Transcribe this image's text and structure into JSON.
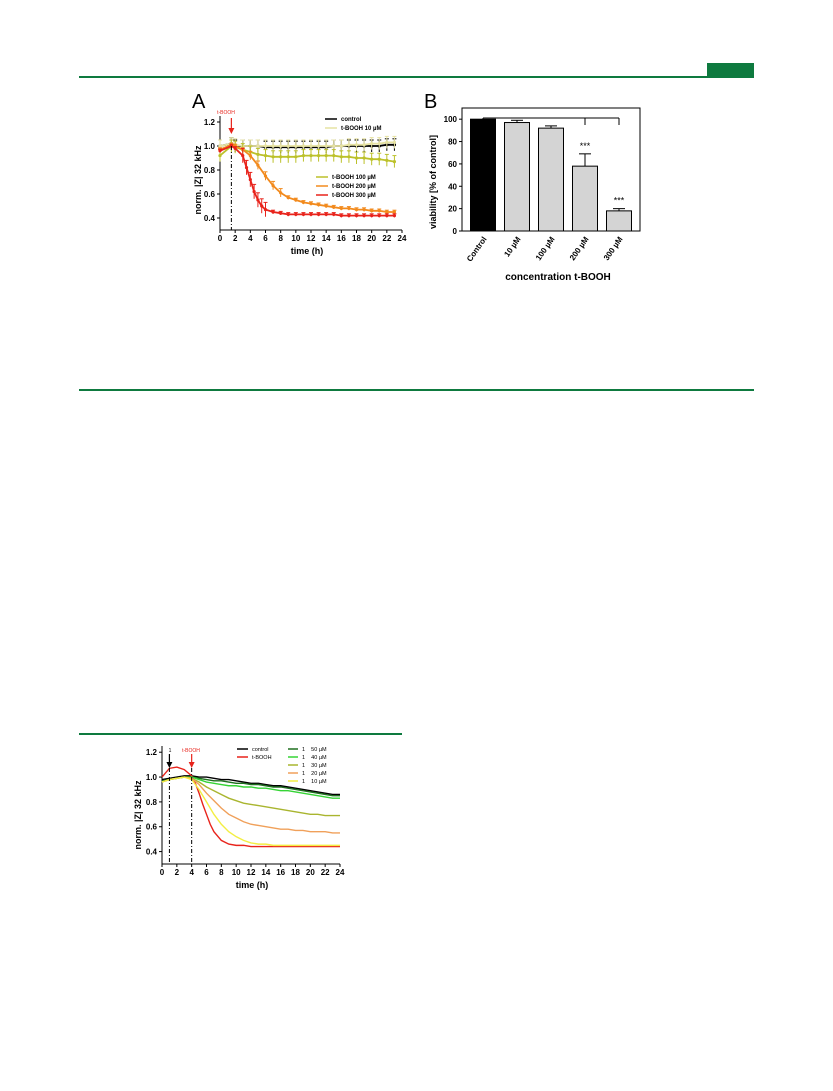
{
  "colors": {
    "rule": "#0e7a3f",
    "accent_block": "#0e7a3f",
    "control": "#000000",
    "tbooh_10": "#e6e2a2",
    "tbooh_100": "#bcc12a",
    "tbooh_200": "#f28a1d",
    "tbooh_300": "#e8231b",
    "arrow_red": "#e8231b",
    "bar_control": "#000000",
    "bar_treated": "#d4d4d4",
    "series_50": "#1f6f1f",
    "series_40": "#36d436",
    "series_30": "#a9b52f",
    "series_20": "#f0a05a",
    "series_10": "#f3ee43"
  },
  "figure_a": {
    "panel_label": "A",
    "arrow_label": "t-BOOH",
    "legend": {
      "control": "control",
      "t10": "t-BOOH 10 µM",
      "t100": "t-BOOH 100 µM",
      "t200": "t-BOOH 200 µM",
      "t300": "t-BOOH 300 µM"
    }
  },
  "figure_b": {
    "panel_label": "B",
    "significance": [
      "***",
      "***"
    ]
  },
  "figure_c": {
    "arrow1_label": "1",
    "arrow2_label": "t-BOOH",
    "legend": {
      "control": "control",
      "tbooh": "t-BOOH",
      "s50": "1    50 µM",
      "s40": "1    40 µM",
      "s30": "1    30 µM",
      "s20": "1    20 µM",
      "s10": "1    10 µM"
    }
  },
  "chart_data": [
    {
      "type": "line",
      "xlabel": "time (h)",
      "ylabel": "norm. |Z| 32 kHz",
      "xlim": [
        0,
        24
      ],
      "ylim": [
        0.3,
        1.25
      ],
      "xticks": [
        0,
        2,
        4,
        6,
        8,
        10,
        12,
        14,
        16,
        18,
        20,
        22,
        24
      ],
      "yticks": [
        0.4,
        0.6,
        0.8,
        1.0,
        1.2
      ],
      "event_time": 1.5,
      "legend_position": "top-right",
      "error_bars": true,
      "series": [
        {
          "name": "control",
          "x": [
            0,
            1.5,
            2,
            3,
            4,
            5,
            6,
            7,
            8,
            9,
            10,
            11,
            12,
            13,
            14,
            15,
            16,
            17,
            18,
            19,
            20,
            21,
            22,
            23
          ],
          "values": [
            1.0,
            1.02,
            1.0,
            1.0,
            1.0,
            1.0,
            0.99,
            0.99,
            0.99,
            0.99,
            0.99,
            0.99,
            0.99,
            0.99,
            0.99,
            1.0,
            1.0,
            1.0,
            1.0,
            1.0,
            1.0,
            1.0,
            1.01,
            1.01
          ]
        },
        {
          "name": "t-BOOH 10 µM",
          "x": [
            0,
            1.5,
            2,
            3,
            4,
            5,
            6,
            7,
            8,
            9,
            10,
            11,
            12,
            13,
            14,
            15,
            16,
            17,
            18,
            19,
            20,
            21,
            22,
            23
          ],
          "values": [
            1.0,
            1.02,
            1.01,
            1.0,
            1.0,
            1.0,
            1.0,
            1.0,
            1.0,
            1.0,
            1.0,
            1.0,
            1.0,
            1.0,
            1.0,
            1.0,
            1.0,
            1.01,
            1.01,
            1.01,
            1.02,
            1.02,
            1.03,
            1.03
          ]
        },
        {
          "name": "t-BOOH 100 µM",
          "x": [
            0,
            1.5,
            2,
            3,
            4,
            5,
            6,
            7,
            8,
            9,
            10,
            11,
            12,
            13,
            14,
            15,
            16,
            17,
            18,
            19,
            20,
            21,
            22,
            23
          ],
          "values": [
            0.92,
            1.0,
            0.99,
            0.97,
            0.95,
            0.93,
            0.92,
            0.91,
            0.91,
            0.91,
            0.91,
            0.92,
            0.92,
            0.92,
            0.92,
            0.92,
            0.91,
            0.91,
            0.9,
            0.9,
            0.89,
            0.89,
            0.88,
            0.87
          ]
        },
        {
          "name": "t-BOOH 200 µM",
          "x": [
            0,
            1.5,
            2,
            3,
            4,
            5,
            6,
            7,
            8,
            9,
            10,
            11,
            12,
            13,
            14,
            15,
            16,
            17,
            18,
            19,
            20,
            21,
            22,
            23
          ],
          "values": [
            0.97,
            1.01,
            1.0,
            0.97,
            0.92,
            0.84,
            0.75,
            0.67,
            0.61,
            0.57,
            0.55,
            0.53,
            0.52,
            0.51,
            0.5,
            0.49,
            0.48,
            0.48,
            0.47,
            0.47,
            0.46,
            0.46,
            0.45,
            0.45
          ]
        },
        {
          "name": "t-BOOH 300 µM",
          "x": [
            0,
            1.5,
            2,
            3,
            3.5,
            4,
            4.5,
            5,
            5.5,
            6,
            7,
            8,
            9,
            10,
            11,
            12,
            13,
            14,
            15,
            16,
            17,
            18,
            19,
            20,
            21,
            22,
            23
          ],
          "values": [
            0.96,
            1.0,
            0.98,
            0.92,
            0.82,
            0.72,
            0.62,
            0.55,
            0.5,
            0.47,
            0.45,
            0.44,
            0.43,
            0.43,
            0.43,
            0.43,
            0.43,
            0.43,
            0.43,
            0.42,
            0.42,
            0.42,
            0.42,
            0.42,
            0.42,
            0.42,
            0.42
          ]
        }
      ]
    },
    {
      "type": "bar",
      "categories": [
        "Control",
        "10 µM",
        "100 µM",
        "200 µM",
        "300 µM"
      ],
      "values": [
        100,
        97,
        92,
        58,
        18
      ],
      "errors": [
        0,
        2,
        2,
        11,
        2
      ],
      "xlabel": "concentration t-BOOH",
      "ylabel": "viability [% of control]",
      "ylim": [
        0,
        110
      ],
      "yticks": [
        0,
        20,
        40,
        60,
        80,
        100
      ],
      "annotations": [
        "***",
        "***"
      ]
    },
    {
      "type": "line",
      "xlabel": "time (h)",
      "ylabel": "norm. |Z| 32 kHz",
      "xlim": [
        0,
        24
      ],
      "ylim": [
        0.3,
        1.25
      ],
      "xticks": [
        0,
        2,
        4,
        6,
        8,
        10,
        12,
        14,
        16,
        18,
        20,
        22,
        24
      ],
      "yticks": [
        0.4,
        0.6,
        0.8,
        1.0,
        1.2
      ],
      "events": [
        1,
        4
      ],
      "legend_position": "top",
      "series": [
        {
          "name": "control",
          "x": [
            0,
            1,
            2,
            3,
            4,
            5,
            6,
            7,
            8,
            9,
            10,
            11,
            12,
            13,
            14,
            15,
            16,
            17,
            18,
            19,
            20,
            21,
            22,
            23,
            24
          ],
          "values": [
            0.98,
            0.99,
            1.0,
            1.01,
            1.01,
            1.0,
            1.0,
            0.99,
            0.98,
            0.98,
            0.97,
            0.96,
            0.95,
            0.95,
            0.94,
            0.93,
            0.93,
            0.92,
            0.91,
            0.9,
            0.89,
            0.88,
            0.87,
            0.86,
            0.86
          ]
        },
        {
          "name": "t-BOOH",
          "x": [
            0,
            1,
            2,
            3,
            4,
            4.5,
            5,
            5.5,
            6,
            6.5,
            7,
            8,
            9,
            10,
            11,
            12,
            14,
            16,
            18,
            20,
            22,
            24
          ],
          "values": [
            1.0,
            1.07,
            1.08,
            1.06,
            1.01,
            0.95,
            0.87,
            0.78,
            0.7,
            0.62,
            0.56,
            0.49,
            0.46,
            0.45,
            0.45,
            0.44,
            0.44,
            0.44,
            0.44,
            0.44,
            0.44,
            0.44
          ]
        },
        {
          "name": "1    50 µM",
          "x": [
            0,
            1,
            2,
            3,
            4,
            5,
            6,
            7,
            8,
            9,
            10,
            11,
            12,
            13,
            14,
            15,
            16,
            17,
            18,
            19,
            20,
            21,
            22,
            23,
            24
          ],
          "values": [
            0.97,
            0.98,
            0.99,
            1.0,
            1.0,
            0.99,
            0.98,
            0.97,
            0.97,
            0.96,
            0.95,
            0.95,
            0.94,
            0.94,
            0.93,
            0.92,
            0.92,
            0.91,
            0.9,
            0.89,
            0.88,
            0.87,
            0.86,
            0.85,
            0.85
          ]
        },
        {
          "name": "1    40 µM",
          "x": [
            0,
            1,
            2,
            3,
            4,
            5,
            6,
            7,
            8,
            9,
            10,
            11,
            12,
            13,
            14,
            15,
            16,
            17,
            18,
            19,
            20,
            21,
            22,
            23,
            24
          ],
          "values": [
            0.96,
            0.98,
            0.99,
            1.0,
            1.0,
            0.98,
            0.96,
            0.95,
            0.94,
            0.93,
            0.93,
            0.92,
            0.92,
            0.91,
            0.91,
            0.9,
            0.89,
            0.89,
            0.88,
            0.87,
            0.86,
            0.85,
            0.84,
            0.83,
            0.83
          ]
        },
        {
          "name": "1    30 µM",
          "x": [
            0,
            1,
            2,
            3,
            4,
            5,
            6,
            7,
            8,
            9,
            10,
            11,
            12,
            13,
            14,
            15,
            16,
            17,
            18,
            19,
            20,
            21,
            22,
            23,
            24
          ],
          "values": [
            0.96,
            0.98,
            0.99,
            1.0,
            0.99,
            0.96,
            0.92,
            0.89,
            0.86,
            0.83,
            0.81,
            0.79,
            0.78,
            0.77,
            0.76,
            0.75,
            0.74,
            0.73,
            0.72,
            0.71,
            0.7,
            0.7,
            0.69,
            0.69,
            0.69
          ]
        },
        {
          "name": "1    20 µM",
          "x": [
            0,
            1,
            2,
            3,
            4,
            5,
            6,
            7,
            8,
            9,
            10,
            11,
            12,
            13,
            14,
            15,
            16,
            17,
            18,
            19,
            20,
            21,
            22,
            23,
            24
          ],
          "values": [
            0.96,
            0.98,
            0.99,
            1.0,
            0.99,
            0.94,
            0.87,
            0.81,
            0.75,
            0.7,
            0.67,
            0.64,
            0.62,
            0.61,
            0.6,
            0.59,
            0.58,
            0.58,
            0.57,
            0.57,
            0.56,
            0.56,
            0.56,
            0.55,
            0.55
          ]
        },
        {
          "name": "1    10 µM",
          "x": [
            0,
            1,
            2,
            3,
            4,
            5,
            6,
            7,
            8,
            9,
            10,
            11,
            12,
            13,
            14,
            15,
            16,
            17,
            18,
            19,
            20,
            22,
            24
          ],
          "values": [
            0.96,
            0.98,
            0.99,
            1.0,
            0.98,
            0.9,
            0.8,
            0.7,
            0.62,
            0.56,
            0.52,
            0.49,
            0.47,
            0.46,
            0.46,
            0.45,
            0.45,
            0.45,
            0.45,
            0.45,
            0.45,
            0.45,
            0.45
          ]
        }
      ]
    }
  ]
}
